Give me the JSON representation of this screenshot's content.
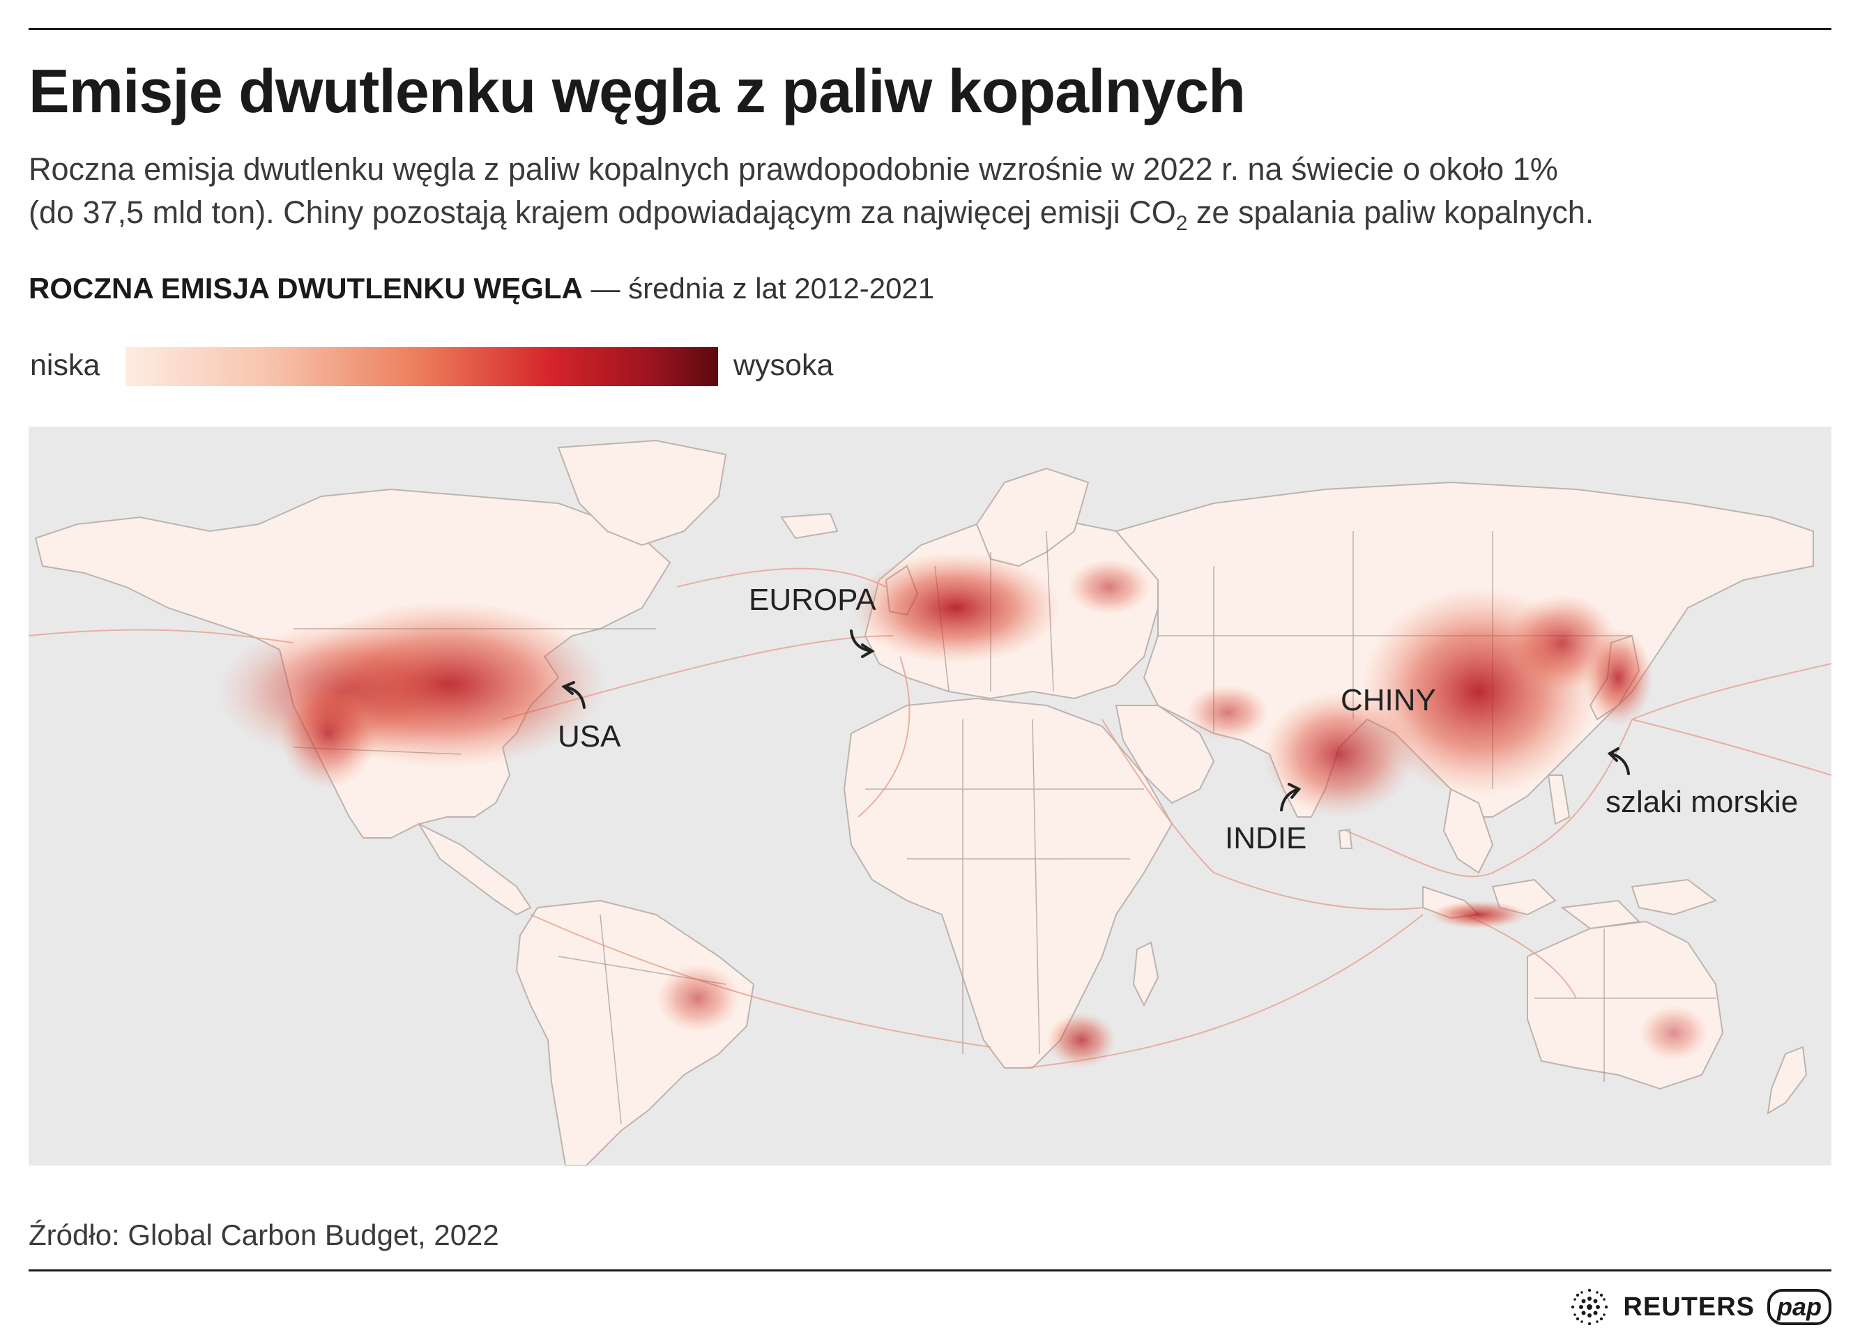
{
  "header": {
    "title": "Emisje dwutlenku węgla z paliw kopalnych",
    "subtitle_line1": "Roczna emisja dwutlenku węgla z paliw kopalnych prawdopodobnie wzrośnie w 2022 r. na świecie o około 1%",
    "subtitle_line2_before": "(do 37,5 mld ton). Chiny pozostają krajem odpowiadającym za najwięcej emisji CO",
    "subtitle_subscript": "2",
    "subtitle_line2_after": " ze spalania paliw kopalnych."
  },
  "section": {
    "label_bold": "ROCZNA EMISJA DWUTLENKU WĘGLA",
    "label_rest": " — średnia z lat 2012-2021"
  },
  "legend": {
    "low": "niska",
    "high": "wysoka",
    "gradient_colors": [
      "#fdece2",
      "#f7c2aa",
      "#ec7c5a",
      "#d4242a",
      "#9e1420",
      "#5c0a0f"
    ]
  },
  "map": {
    "ocean_color": "#e9e9ea",
    "land_color": "#fdf0ea",
    "labels": {
      "europe": "EUROPA",
      "usa": "USA",
      "china": "CHINY",
      "india": "INDIE",
      "shipping": "szlaki morskie"
    }
  },
  "footer": {
    "source": "Źródło: Global Carbon Budget, 2022",
    "logo_reuters": "REUTERS",
    "logo_pap": "pap"
  }
}
